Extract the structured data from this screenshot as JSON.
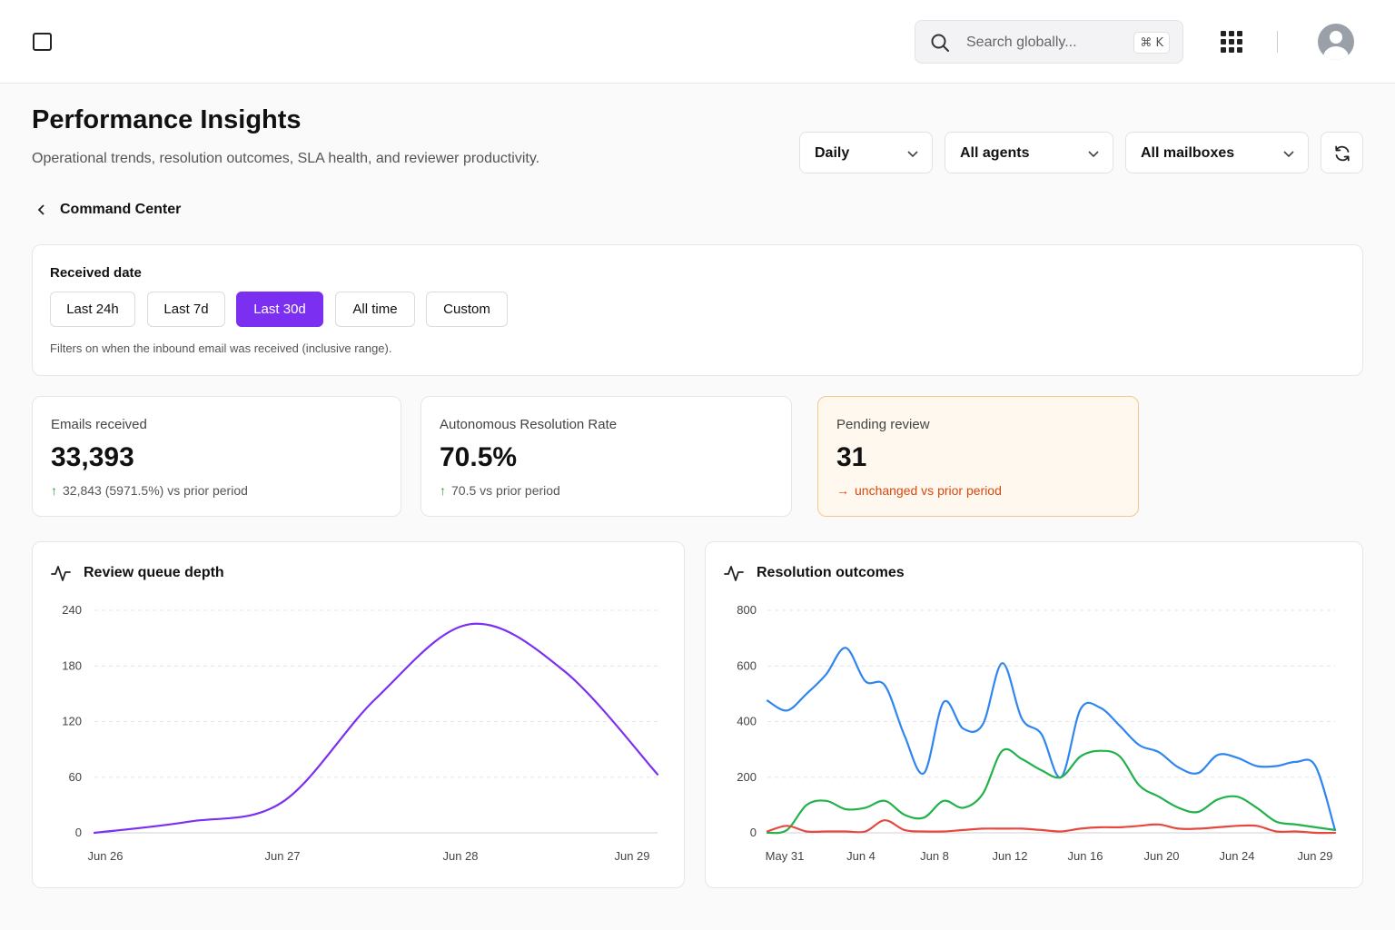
{
  "header": {
    "search_placeholder": "Search globally...",
    "search_shortcut": "⌘ K",
    "icons": [
      "sidebar-toggle-icon",
      "search-icon",
      "apps-grid-icon",
      "avatar"
    ]
  },
  "page": {
    "title": "Performance Insights",
    "subtitle": "Operational trends, resolution outcomes, SLA health, and reviewer productivity.",
    "back_label": "Command Center"
  },
  "filters": {
    "granularity": "Daily",
    "agents": "All agents",
    "mailboxes": "All mailboxes"
  },
  "received_date": {
    "title": "Received date",
    "options": [
      "Last 24h",
      "Last 7d",
      "Last 30d",
      "All time",
      "Custom"
    ],
    "selected": "Last 30d",
    "hint": "Filters on when the inbound email was received (inclusive range)."
  },
  "kpis": [
    {
      "label": "Emails received",
      "value": "33,393",
      "delta_arrow": "↑",
      "delta": "32,843 (5971.5%) vs prior period",
      "status": "up"
    },
    {
      "label": "Autonomous Resolution Rate",
      "value": "70.5%",
      "delta_arrow": "↑",
      "delta": "70.5 vs prior period",
      "status": "up"
    },
    {
      "label": "Pending review",
      "value": "31",
      "delta_arrow": "→",
      "delta": "unchanged vs prior period",
      "status": "warning"
    }
  ],
  "colors": {
    "accent": "#7b2ff0",
    "blue": "#2f86f0",
    "green": "#22b24c",
    "red": "#e5483f",
    "warning_bg": "#fff8ef",
    "warning_text": "#d9480f"
  },
  "chart_data": [
    {
      "type": "line",
      "title": "Review queue depth",
      "x": [
        "Jun 26",
        "Jun 26 12:00",
        "Jun 27",
        "Jun 27 12:00",
        "Jun 28",
        "Jun 28 12:00",
        "Jun 29"
      ],
      "x_tick_labels": [
        "Jun 26",
        "Jun 27",
        "Jun 28",
        "Jun 29"
      ],
      "y_ticks": [
        0,
        60,
        120,
        180,
        240
      ],
      "ylim": [
        0,
        240
      ],
      "grid": true,
      "series": [
        {
          "color": "#7b2ff0",
          "values": [
            0,
            12,
            33,
            145,
            225,
            175,
            63
          ]
        }
      ]
    },
    {
      "type": "line",
      "title": "Resolution outcomes",
      "x": [
        "May 31",
        "Jun 1",
        "Jun 2",
        "Jun 3",
        "Jun 4",
        "Jun 5",
        "Jun 6",
        "Jun 7",
        "Jun 8",
        "Jun 9",
        "Jun 10",
        "Jun 11",
        "Jun 12",
        "Jun 13",
        "Jun 14",
        "Jun 15",
        "Jun 16",
        "Jun 17",
        "Jun 18",
        "Jun 19",
        "Jun 20",
        "Jun 21",
        "Jun 22",
        "Jun 23",
        "Jun 24",
        "Jun 25",
        "Jun 26",
        "Jun 27",
        "Jun 28",
        "Jun 29"
      ],
      "x_tick_labels": [
        "May 31",
        "Jun 4",
        "Jun 8",
        "Jun 12",
        "Jun 16",
        "Jun 20",
        "Jun 24",
        "Jun 29"
      ],
      "y_ticks": [
        0,
        200,
        400,
        600,
        800
      ],
      "ylim": [
        0,
        800
      ],
      "grid": true,
      "series": [
        {
          "color": "#2f86f0",
          "values": [
            475,
            440,
            500,
            570,
            665,
            545,
            530,
            350,
            215,
            470,
            375,
            390,
            610,
            410,
            355,
            200,
            445,
            450,
            385,
            315,
            290,
            235,
            215,
            280,
            270,
            240,
            240,
            255,
            240,
            10
          ]
        },
        {
          "color": "#22b24c",
          "values": [
            0,
            10,
            100,
            115,
            85,
            90,
            115,
            65,
            55,
            115,
            90,
            140,
            295,
            265,
            225,
            200,
            275,
            295,
            275,
            170,
            130,
            90,
            75,
            120,
            130,
            90,
            40,
            30,
            20,
            10
          ]
        },
        {
          "color": "#e5483f",
          "values": [
            5,
            25,
            5,
            5,
            5,
            5,
            45,
            10,
            5,
            5,
            10,
            15,
            15,
            15,
            10,
            5,
            15,
            20,
            20,
            25,
            30,
            15,
            15,
            20,
            25,
            25,
            5,
            5,
            0,
            0
          ]
        }
      ]
    }
  ]
}
